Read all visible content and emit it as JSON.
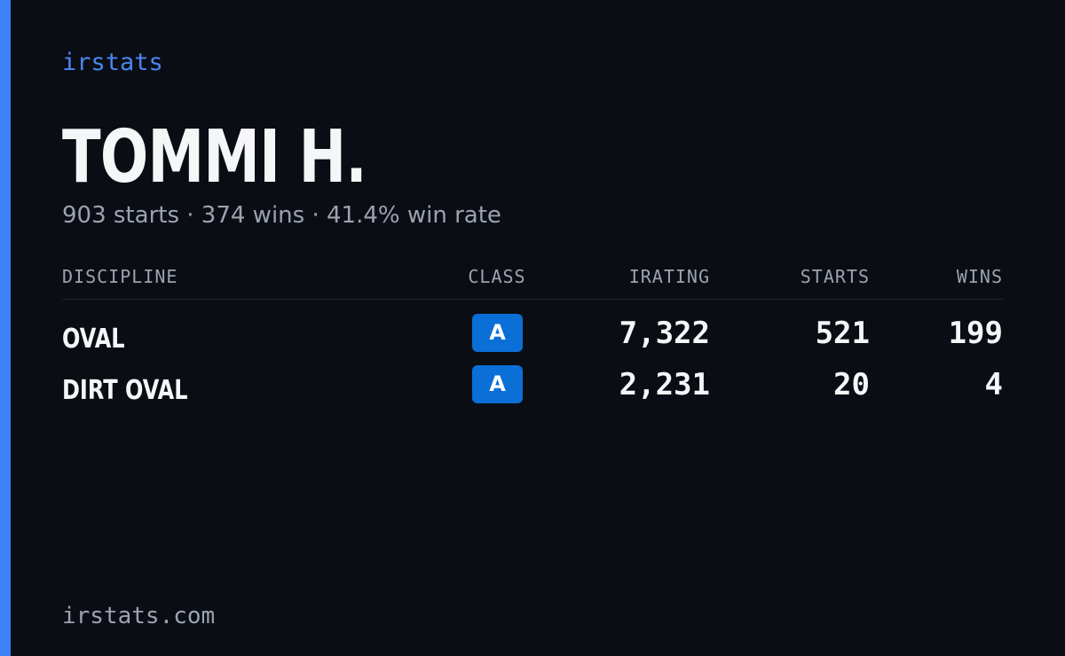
{
  "header": {
    "brand": "irstats",
    "name": "TOMMI H.",
    "summary": "903 starts · 374 wins · 41.4% win rate"
  },
  "table": {
    "columns": [
      "DISCIPLINE",
      "CLASS",
      "IRATING",
      "STARTS",
      "WINS"
    ],
    "rows": [
      [
        "OVAL",
        "A",
        "7,322",
        "521",
        "199"
      ],
      [
        "DIRT OVAL",
        "A",
        "2,231",
        "20",
        "4"
      ]
    ]
  },
  "footer": {
    "site": "irstats.com"
  }
}
